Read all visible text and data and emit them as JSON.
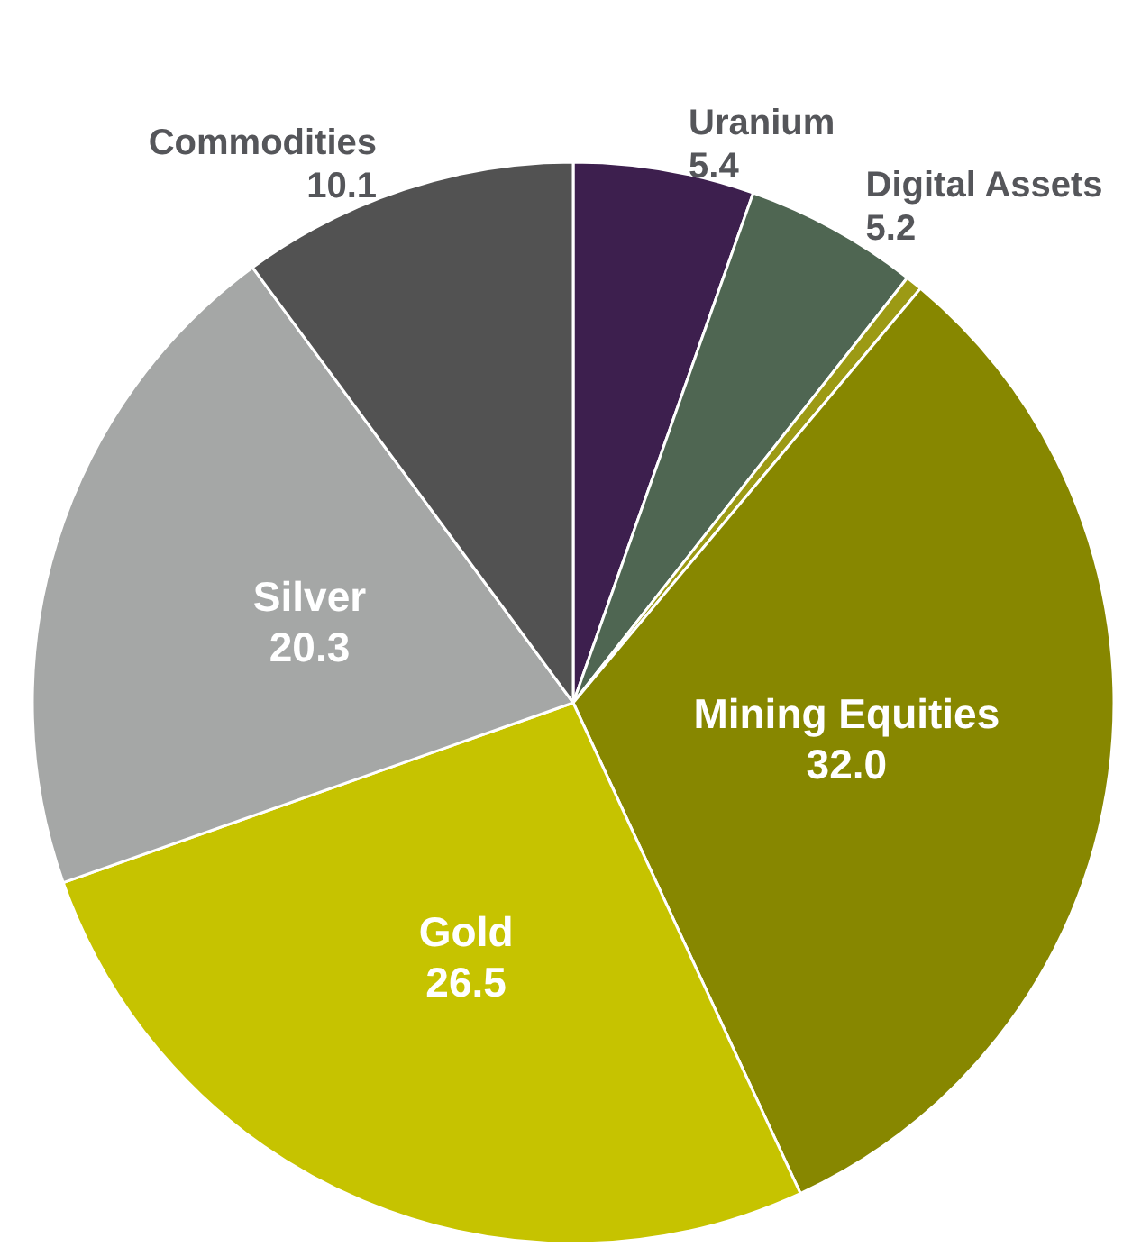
{
  "chart_data": {
    "type": "pie",
    "categories": [
      "Uranium",
      "Digital Assets",
      null,
      "Mining Equities",
      "Gold",
      "Silver",
      "Commodities"
    ],
    "values": [
      5.4,
      5.2,
      0.5,
      32.0,
      26.5,
      20.3,
      10.1
    ],
    "value_labels": [
      "5.4",
      "5.2",
      null,
      "32.0",
      "26.5",
      "20.3",
      "10.1"
    ],
    "colors": [
      "#3d1f4e",
      "#4f6652",
      "#9c9a14",
      "#878700",
      "#c6c300",
      "#a5a7a6",
      "#525252"
    ],
    "legend": false
  }
}
